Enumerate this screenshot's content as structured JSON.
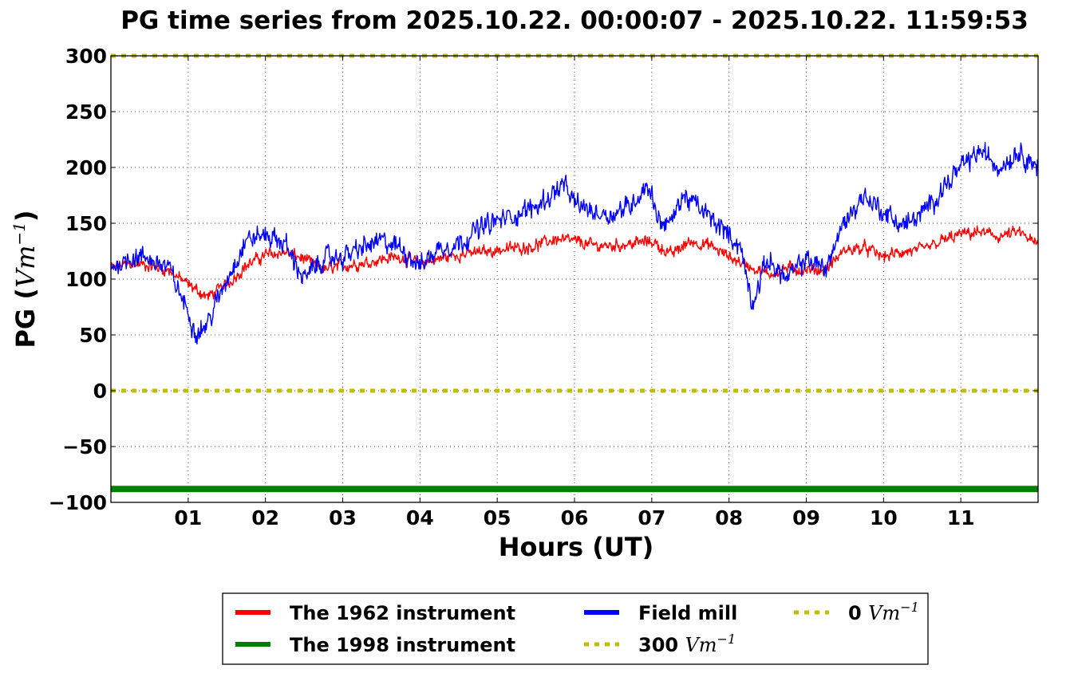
{
  "chart_data": {
    "type": "line",
    "title": "PG time series from 2025.10.22. 00:00:07 - 2025.10.22. 11:59:53",
    "xlabel": "Hours (UT)",
    "ylabel": {
      "text": "PG (",
      "unit_base": "Vm",
      "unit_exp": "−1",
      "close": ")"
    },
    "xlim": [
      0,
      12
    ],
    "ylim": [
      -100,
      300
    ],
    "x_unit": "hours (UT)",
    "grid": true,
    "grid_style": "dotted",
    "xticks": [
      {
        "value": 1,
        "label": "01"
      },
      {
        "value": 2,
        "label": "02"
      },
      {
        "value": 3,
        "label": "03"
      },
      {
        "value": 4,
        "label": "04"
      },
      {
        "value": 5,
        "label": "05"
      },
      {
        "value": 6,
        "label": "06"
      },
      {
        "value": 7,
        "label": "07"
      },
      {
        "value": 8,
        "label": "08"
      },
      {
        "value": 9,
        "label": "09"
      },
      {
        "value": 10,
        "label": "10"
      },
      {
        "value": 11,
        "label": "11"
      }
    ],
    "yticks": [
      {
        "value": 300,
        "label": "300"
      },
      {
        "value": 250,
        "label": "250"
      },
      {
        "value": 200,
        "label": "200"
      },
      {
        "value": 150,
        "label": "150"
      },
      {
        "value": 100,
        "label": "100"
      },
      {
        "value": 50,
        "label": "50"
      },
      {
        "value": 0,
        "label": "0"
      },
      {
        "value": -50,
        "label": "−50"
      },
      {
        "value": -100,
        "label": "−100"
      }
    ],
    "legend_position": "bottom-center, below plot",
    "legend": [
      {
        "name": "The 1962 instrument",
        "color": "#ff0000",
        "style": "solid",
        "math_unit": null,
        "col": 0,
        "row": 0
      },
      {
        "name": "The 1998 instrument",
        "color": "#008000",
        "style": "solid",
        "math_unit": null,
        "col": 0,
        "row": 1
      },
      {
        "name": "Field mill",
        "color": "#0000ff",
        "style": "solid",
        "math_unit": null,
        "col": 1,
        "row": 0
      },
      {
        "name": "300 ",
        "color": "#bfbf00",
        "style": "dotted",
        "math_unit": {
          "base": "Vm",
          "exp": "−1"
        },
        "col": 1,
        "row": 1
      },
      {
        "name": "0 ",
        "color": "#bfbf00",
        "style": "dotted",
        "math_unit": {
          "base": "Vm",
          "exp": "−1"
        },
        "col": 2,
        "row": 0
      }
    ],
    "series": [
      {
        "name": "The 1962 instrument",
        "color": "#ff0000",
        "x": [
          0.0,
          0.25,
          0.5,
          0.75,
          1.0,
          1.25,
          1.5,
          1.75,
          2.0,
          2.25,
          2.5,
          2.75,
          3.0,
          3.25,
          3.5,
          3.75,
          4.0,
          4.25,
          4.5,
          4.75,
          5.0,
          5.25,
          5.5,
          5.75,
          6.0,
          6.25,
          6.5,
          6.75,
          7.0,
          7.25,
          7.5,
          7.75,
          8.0,
          8.25,
          8.5,
          8.75,
          9.0,
          9.25,
          9.5,
          9.75,
          10.0,
          10.25,
          10.5,
          10.75,
          11.0,
          11.25,
          11.5,
          11.75,
          12.0
        ],
        "y": [
          110,
          114,
          112,
          108,
          95,
          84,
          95,
          112,
          122,
          124,
          118,
          108,
          112,
          114,
          118,
          120,
          114,
          118,
          122,
          124,
          126,
          128,
          130,
          136,
          134,
          130,
          130,
          132,
          134,
          122,
          134,
          130,
          120,
          112,
          104,
          110,
          108,
          108,
          126,
          128,
          120,
          124,
          126,
          134,
          140,
          142,
          138,
          142,
          130
        ],
        "noise": 7
      },
      {
        "name": "Field mill",
        "color": "#0000ff",
        "x": [
          0.0,
          0.25,
          0.5,
          0.75,
          1.0,
          1.1,
          1.25,
          1.5,
          1.75,
          2.0,
          2.25,
          2.5,
          2.75,
          3.0,
          3.25,
          3.5,
          3.75,
          4.0,
          4.25,
          4.5,
          4.75,
          5.0,
          5.25,
          5.5,
          5.75,
          5.85,
          6.0,
          6.25,
          6.5,
          6.75,
          6.95,
          7.1,
          7.25,
          7.4,
          7.6,
          7.75,
          8.0,
          8.15,
          8.3,
          8.5,
          8.75,
          9.0,
          9.25,
          9.5,
          9.75,
          10.0,
          10.25,
          10.5,
          10.75,
          11.0,
          11.25,
          11.5,
          11.75,
          12.0
        ],
        "y": [
          110,
          120,
          118,
          110,
          70,
          52,
          60,
          100,
          135,
          140,
          132,
          100,
          118,
          120,
          128,
          134,
          128,
          112,
          128,
          132,
          145,
          152,
          158,
          165,
          178,
          185,
          168,
          160,
          158,
          168,
          185,
          152,
          150,
          175,
          165,
          155,
          140,
          128,
          78,
          118,
          100,
          118,
          110,
          152,
          175,
          160,
          148,
          158,
          180,
          200,
          215,
          200,
          215,
          200
        ],
        "noise": 12
      },
      {
        "name": "The 1998 instrument",
        "color": "#008000",
        "x": [
          0,
          12
        ],
        "y": [
          -88,
          -88
        ],
        "noise": 0
      },
      {
        "name": "300 ",
        "color": "#bfbf00",
        "x": [
          0,
          12
        ],
        "y": [
          300,
          300
        ],
        "noise": 0
      },
      {
        "name": "0 ",
        "color": "#bfbf00",
        "x": [
          0,
          12
        ],
        "y": [
          0,
          0
        ],
        "noise": 0
      }
    ]
  }
}
